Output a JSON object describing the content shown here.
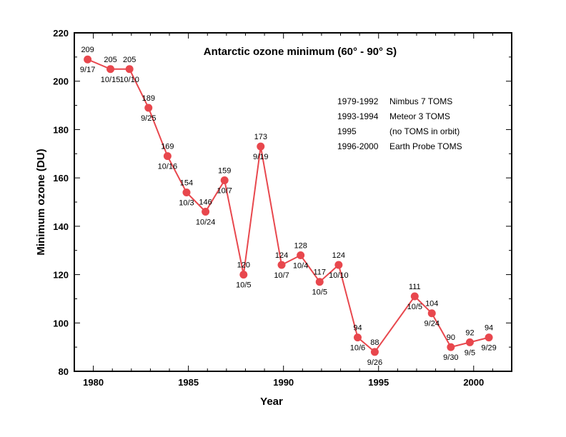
{
  "chart_data": {
    "type": "line",
    "title": "Antarctic ozone minimum (60° - 90° S)",
    "xlabel": "Year",
    "ylabel": "Minimum ozone (DU)",
    "xlim": [
      1979,
      2002
    ],
    "ylim": [
      80,
      220
    ],
    "xticks": [
      1980,
      1985,
      1990,
      1995,
      2000
    ],
    "yticks": [
      80,
      100,
      120,
      140,
      160,
      180,
      200,
      220
    ],
    "grid": false,
    "line_color": "#e8474d",
    "points": [
      {
        "x": 1979.7,
        "y": 209,
        "value_label": "209",
        "date_label": "9/17"
      },
      {
        "x": 1980.9,
        "y": 205,
        "value_label": "205",
        "date_label": "10/15"
      },
      {
        "x": 1981.9,
        "y": 205,
        "value_label": "205",
        "date_label": "10/10"
      },
      {
        "x": 1982.9,
        "y": 189,
        "value_label": "189",
        "date_label": "9/25"
      },
      {
        "x": 1983.9,
        "y": 169,
        "value_label": "169",
        "date_label": "10/16"
      },
      {
        "x": 1984.9,
        "y": 154,
        "value_label": "154",
        "date_label": "10/3"
      },
      {
        "x": 1985.9,
        "y": 146,
        "value_label": "146",
        "date_label": "10/24"
      },
      {
        "x": 1986.9,
        "y": 159,
        "value_label": "159",
        "date_label": "10/7"
      },
      {
        "x": 1987.9,
        "y": 120,
        "value_label": "120",
        "date_label": "10/5"
      },
      {
        "x": 1988.8,
        "y": 173,
        "value_label": "173",
        "date_label": "9/19"
      },
      {
        "x": 1989.9,
        "y": 124,
        "value_label": "124",
        "date_label": "10/7"
      },
      {
        "x": 1990.9,
        "y": 128,
        "value_label": "128",
        "date_label": "10/4"
      },
      {
        "x": 1991.9,
        "y": 117,
        "value_label": "117",
        "date_label": "10/5"
      },
      {
        "x": 1992.9,
        "y": 124,
        "value_label": "124",
        "date_label": "10/10"
      },
      {
        "x": 1993.9,
        "y": 94,
        "value_label": "94",
        "date_label": "10/6"
      },
      {
        "x": 1994.8,
        "y": 88,
        "value_label": "88",
        "date_label": "9/26"
      },
      {
        "x": 1996.9,
        "y": 111,
        "value_label": "111",
        "date_label": "10/5"
      },
      {
        "x": 1997.8,
        "y": 104,
        "value_label": "104",
        "date_label": "9/24"
      },
      {
        "x": 1998.8,
        "y": 90,
        "value_label": "90",
        "date_label": "9/30"
      },
      {
        "x": 1999.8,
        "y": 92,
        "value_label": "92",
        "date_label": "9/5"
      },
      {
        "x": 2000.8,
        "y": 94,
        "value_label": "94",
        "date_label": "9/29"
      }
    ],
    "legend": [
      {
        "years": "1979-1992",
        "instrument": "Nimbus 7 TOMS"
      },
      {
        "years": "1993-1994",
        "instrument": "Meteor 3 TOMS"
      },
      {
        "years": "1995",
        "instrument": "(no TOMS in orbit)"
      },
      {
        "years": "1996-2000",
        "instrument": "Earth Probe TOMS"
      }
    ]
  }
}
